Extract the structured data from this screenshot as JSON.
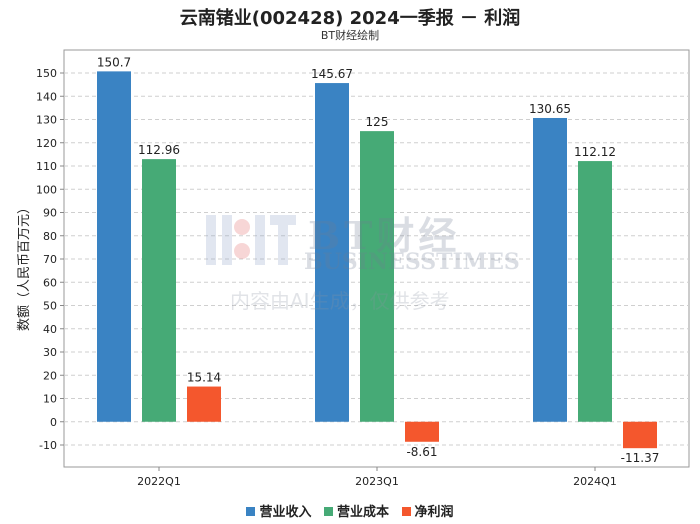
{
  "chart": {
    "title": "云南锗业(002428) 2024一季报 － 利润",
    "subtitle": "BT财经绘制",
    "ylabel": "数额（人民币百万元）"
  },
  "watermark": {
    "line1": "BT财经",
    "line2": "BUSINESSTIMES",
    "line3": "内容由AI生成，仅供参考"
  },
  "colors": {
    "revenue": "#3a83c3",
    "cost": "#46aa76",
    "profit": "#f4572d"
  },
  "chart_data": {
    "type": "bar",
    "categories": [
      "2022Q1",
      "2023Q1",
      "2024Q1"
    ],
    "series": [
      {
        "name": "营业收入",
        "values": [
          150.7,
          145.67,
          130.65
        ]
      },
      {
        "name": "营业成本",
        "values": [
          112.96,
          125,
          112.12
        ]
      },
      {
        "name": "净利润",
        "values": [
          15.14,
          -8.61,
          -11.37
        ]
      }
    ],
    "value_labels": [
      [
        "150.7",
        "145.67",
        "130.65"
      ],
      [
        "112.96",
        "125",
        "112.12"
      ],
      [
        "15.14",
        "-8.61",
        "-11.37"
      ]
    ],
    "ylim": [
      -15,
      155
    ],
    "yticks": [
      -10,
      0,
      10,
      20,
      30,
      40,
      50,
      60,
      70,
      80,
      90,
      100,
      110,
      120,
      130,
      140,
      150
    ],
    "grid": true,
    "legend": "bottom"
  }
}
